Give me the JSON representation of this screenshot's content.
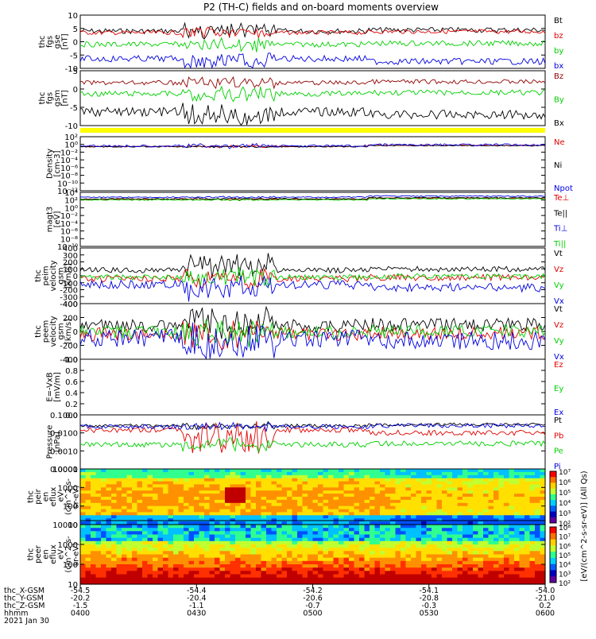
{
  "title": "P2 (TH-C) fields and on-board moments overview",
  "colors": {
    "black": "#000000",
    "red": "#e00000",
    "green": "#00d000",
    "blue": "#0000e0",
    "darkred": "#900000",
    "yellow": "#ffff00"
  },
  "chart_data": [
    {
      "type": "line",
      "id": "p1",
      "ylabel_lines": [
        "thc",
        "fgs",
        "gse",
        "[nT]"
      ],
      "yticks": [
        "10",
        "5",
        "0",
        "-5",
        "-10"
      ],
      "ylim": [
        -11,
        11
      ],
      "series": [
        {
          "name": "Bt",
          "color": "black"
        },
        {
          "name": "bz",
          "color": "red"
        },
        {
          "name": "by",
          "color": "green"
        },
        {
          "name": "bx",
          "color": "blue"
        }
      ]
    },
    {
      "type": "line",
      "id": "p2",
      "ylabel_lines": [
        "thc",
        "fgs",
        "gsm",
        "[nT]"
      ],
      "yticks": [
        "5",
        "0",
        "-5",
        "-10"
      ],
      "ylim": [
        -11,
        6
      ],
      "series": [
        {
          "name": "Bz",
          "color": "darkred"
        },
        {
          "name": "By",
          "color": "green"
        },
        {
          "name": "Bx",
          "color": "black"
        }
      ]
    },
    {
      "type": "line",
      "id": "p3",
      "ylabel_lines": [
        "Density",
        "[cm-3]"
      ],
      "yticks": [
        "10²",
        "10⁰",
        "10⁻²",
        "10⁻⁴",
        "10⁻⁶",
        "10⁻⁸",
        "10⁻¹⁰",
        "10⁻¹²"
      ],
      "yscale": "log",
      "series": [
        {
          "name": "Ne",
          "color": "red"
        },
        {
          "name": "Ni",
          "color": "black"
        },
        {
          "name": "Npot",
          "color": "blue"
        }
      ]
    },
    {
      "type": "line",
      "id": "p4",
      "ylabel_lines": [
        "magt3",
        "[eV]"
      ],
      "yticks": [
        "10⁴",
        "10²",
        "10⁰",
        "10⁻²",
        "10⁻⁴",
        "10⁻⁶",
        "10⁻⁸",
        "10⁻¹⁰"
      ],
      "yscale": "log",
      "series": [
        {
          "name": "Te⊥",
          "color": "red"
        },
        {
          "name": "Te||",
          "color": "black"
        },
        {
          "name": "Ti⊥",
          "color": "blue"
        },
        {
          "name": "Ti||",
          "color": "green"
        }
      ]
    },
    {
      "type": "line",
      "id": "p5",
      "ylabel_lines": [
        "thc",
        "peim",
        "velocity",
        "gsm",
        "[km/s]"
      ],
      "yticks": [
        "400",
        "300",
        "200",
        "100",
        "0",
        "-100",
        "-200",
        "-300",
        "-400"
      ],
      "ylim": [
        -400,
        400
      ],
      "series": [
        {
          "name": "Vt",
          "color": "black"
        },
        {
          "name": "Vz",
          "color": "red"
        },
        {
          "name": "Vy",
          "color": "green"
        },
        {
          "name": "Vx",
          "color": "blue"
        }
      ]
    },
    {
      "type": "line",
      "id": "p6",
      "ylabel_lines": [
        "thc",
        "peem",
        "velocity",
        "gsm",
        "[km/s]"
      ],
      "yticks": [
        "400",
        "200",
        "0",
        "-200",
        "-400"
      ],
      "ylim": [
        -400,
        400
      ],
      "series": [
        {
          "name": "Vt",
          "color": "black"
        },
        {
          "name": "Vz",
          "color": "red"
        },
        {
          "name": "Vy",
          "color": "green"
        },
        {
          "name": "Vx",
          "color": "blue"
        }
      ]
    },
    {
      "type": "line",
      "id": "p7",
      "ylabel_lines": [
        "E=-VxB",
        "[mV/m]"
      ],
      "yticks": [
        "1.0",
        "0.8",
        "0.6",
        "0.4",
        "0.2",
        "0.0"
      ],
      "ylim": [
        0,
        1
      ],
      "series": [
        {
          "name": "Ez",
          "color": "red"
        },
        {
          "name": "Ey",
          "color": "green"
        },
        {
          "name": "Ex",
          "color": "blue"
        }
      ]
    },
    {
      "type": "line",
      "id": "p8",
      "ylabel_lines": [
        "Pressure",
        "[nPa]"
      ],
      "yticks": [
        "0.1000",
        "0.0100",
        "0.0010",
        "0.0001"
      ],
      "yscale": "log",
      "series": [
        {
          "name": "Pt",
          "color": "black"
        },
        {
          "name": "Pb",
          "color": "red"
        },
        {
          "name": "Pe",
          "color": "green"
        },
        {
          "name": "Pi",
          "color": "blue"
        }
      ]
    },
    {
      "type": "heatmap",
      "id": "p9",
      "ylabel_lines": [
        "thc",
        "peir",
        "en",
        "eflux",
        "eV",
        "(cm^2-s-",
        "sr-eV)"
      ],
      "yticks": [
        "10000",
        "1000",
        "100",
        "10"
      ],
      "yscale": "log"
    },
    {
      "type": "heatmap",
      "id": "p10",
      "ylabel_lines": [
        "thc",
        "peer",
        "en",
        "eflux",
        "eV",
        "(cm^2-s-",
        "sr-eV)"
      ],
      "yticks": [
        "10000",
        "1000",
        "100",
        "10"
      ],
      "yscale": "log"
    }
  ],
  "colorbar": {
    "upper_ticks": [
      "10⁷",
      "10⁶",
      "10⁵",
      "10⁴",
      "10³",
      "10²"
    ],
    "lower_ticks": [
      "10⁸",
      "10⁷",
      "10⁶",
      "10⁵",
      "10⁴",
      "10³",
      "10²"
    ],
    "label": "[eV/(cm^2-s-sr-eV)] (All Qs)"
  },
  "axis": {
    "row_labels": [
      "thc_X-GSM",
      "thc_Y-GSM",
      "thc_Z-GSM",
      "hhmm",
      "2021 Jan 30"
    ],
    "columns": [
      [
        "-54.5",
        "-20.2",
        "-1.5",
        "0400"
      ],
      [
        "-54.4",
        "-20.4",
        "-1.1",
        "0430"
      ],
      [
        "-54.2",
        "-20.6",
        "-0.7",
        "0500"
      ],
      [
        "-54.1",
        "-20.8",
        "-0.3",
        "0530"
      ],
      [
        "-54.0",
        "-21.0",
        "0.2",
        "0600"
      ]
    ]
  }
}
